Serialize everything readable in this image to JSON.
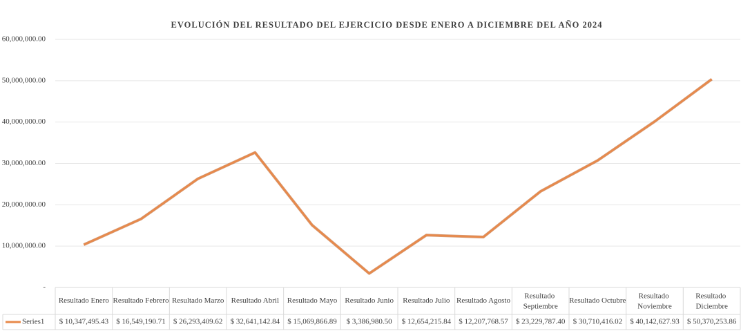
{
  "chart_data": {
    "type": "line",
    "title": "EVOLUCIÓN DEL RESULTADO DEL EJERCICIO DESDE ENERO A DICIEMBRE DEL AÑO 2024",
    "categories": [
      "Resultado Enero",
      "Resultado Febrero",
      "Resultado Marzo",
      "Resultado Abril",
      "Resultado Mayo",
      "Resultado Junio",
      "Resultado Julio",
      "Resultado Agosto",
      "Resultado Septiembre",
      "Resultado Octubre",
      "Resultado Noviembre",
      "Resultado Diciembre"
    ],
    "series": [
      {
        "name": "Series1",
        "color": "#e8894a",
        "values": [
          10347495.43,
          16549190.71,
          26293409.62,
          32641142.84,
          15069866.89,
          3386980.5,
          12654215.84,
          12207768.57,
          23229787.4,
          30710416.02,
          40142627.93,
          50370253.86
        ],
        "value_labels": [
          "$ 10,347,495.43",
          "$ 16,549,190.71",
          "$ 26,293,409.62",
          "$ 32,641,142.84",
          "$ 15,069,866.89",
          "$ 3,386,980.50",
          "$ 12,654,215.84",
          "$ 12,207,768.57",
          "$ 23,229,787.40",
          "$ 30,710,416.02",
          "$ 40,142,627.93",
          "$ 50,370,253.86"
        ]
      }
    ],
    "ylim": [
      0,
      60000000
    ],
    "yticks": [
      {
        "value": 0,
        "label": "-"
      },
      {
        "value": 10000000,
        "label": "10,000,000.00"
      },
      {
        "value": 20000000,
        "label": "20,000,000.00"
      },
      {
        "value": 30000000,
        "label": "30,000,000.00"
      },
      {
        "value": 40000000,
        "label": "40,000,000.00"
      },
      {
        "value": 50000000,
        "label": "50,000,000.00"
      },
      {
        "value": 60000000,
        "label": "60,000,000.00"
      }
    ],
    "grid": true
  }
}
